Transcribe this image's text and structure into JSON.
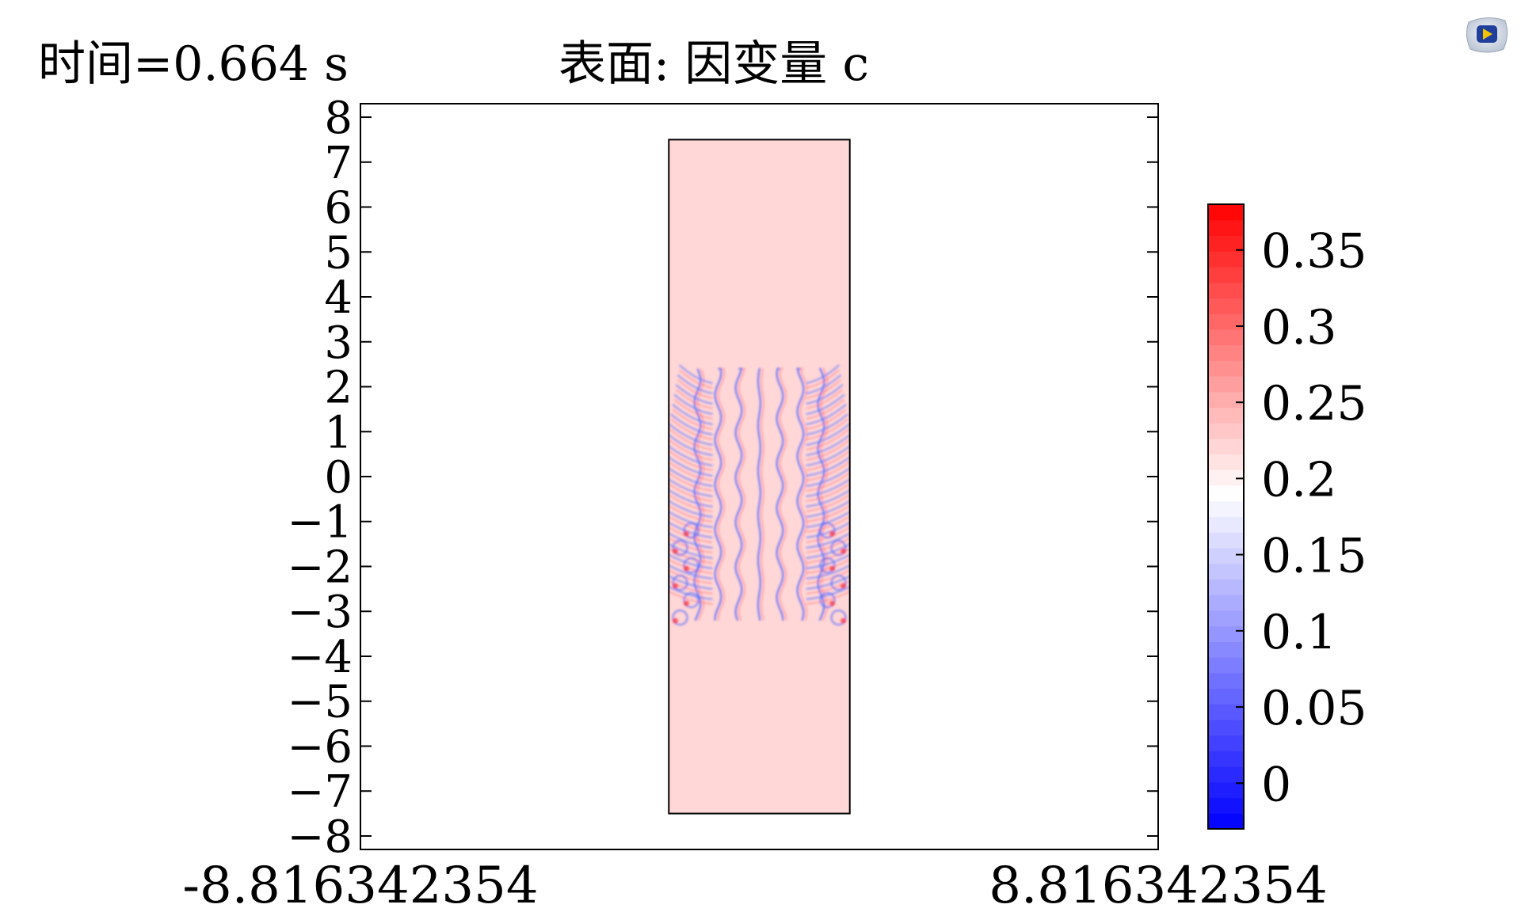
{
  "header": {
    "time_text": "时间=0.664 s",
    "title_text": "表面: 因变量 c"
  },
  "icons": {
    "logo": "comsol-play-logo-icon"
  },
  "chart_data": {
    "type": "heatmap",
    "title": "表面: 因变量 c",
    "annotation": "时间=0.664 s",
    "xlim": [
      -8.816342354,
      8.816342354
    ],
    "ylim": [
      -8.3,
      8.3
    ],
    "x_labels": [
      "-8.816342354",
      "8.816342354"
    ],
    "y_ticks": [
      8,
      7,
      6,
      5,
      4,
      3,
      2,
      1,
      0,
      -1,
      -2,
      -3,
      -4,
      -5,
      -6,
      -7,
      -8
    ],
    "y_tick_labels": [
      "8",
      "7",
      "6",
      "5",
      "4",
      "3",
      "2",
      "1",
      "0",
      "−1",
      "−2",
      "−3",
      "−4",
      "−5",
      "−6",
      "−7",
      "−8"
    ],
    "domain_rect": {
      "x": [
        -2.0,
        2.0
      ],
      "y": [
        -7.5,
        7.5
      ]
    },
    "background_value": 0.22,
    "colorbar": {
      "min": -0.03,
      "max": 0.38,
      "ticks": [
        0.35,
        0.3,
        0.25,
        0.2,
        0.15,
        0.1,
        0.05,
        0
      ],
      "tick_labels": [
        "0.35",
        "0.3",
        "0.25",
        "0.2",
        "0.15",
        "0.1",
        "0.05",
        "0"
      ],
      "colormap": "wave",
      "low_color": "#0000ff",
      "mid_color": "#ffffff",
      "high_color": "#ff0000"
    },
    "grid": false,
    "legend": "right"
  }
}
